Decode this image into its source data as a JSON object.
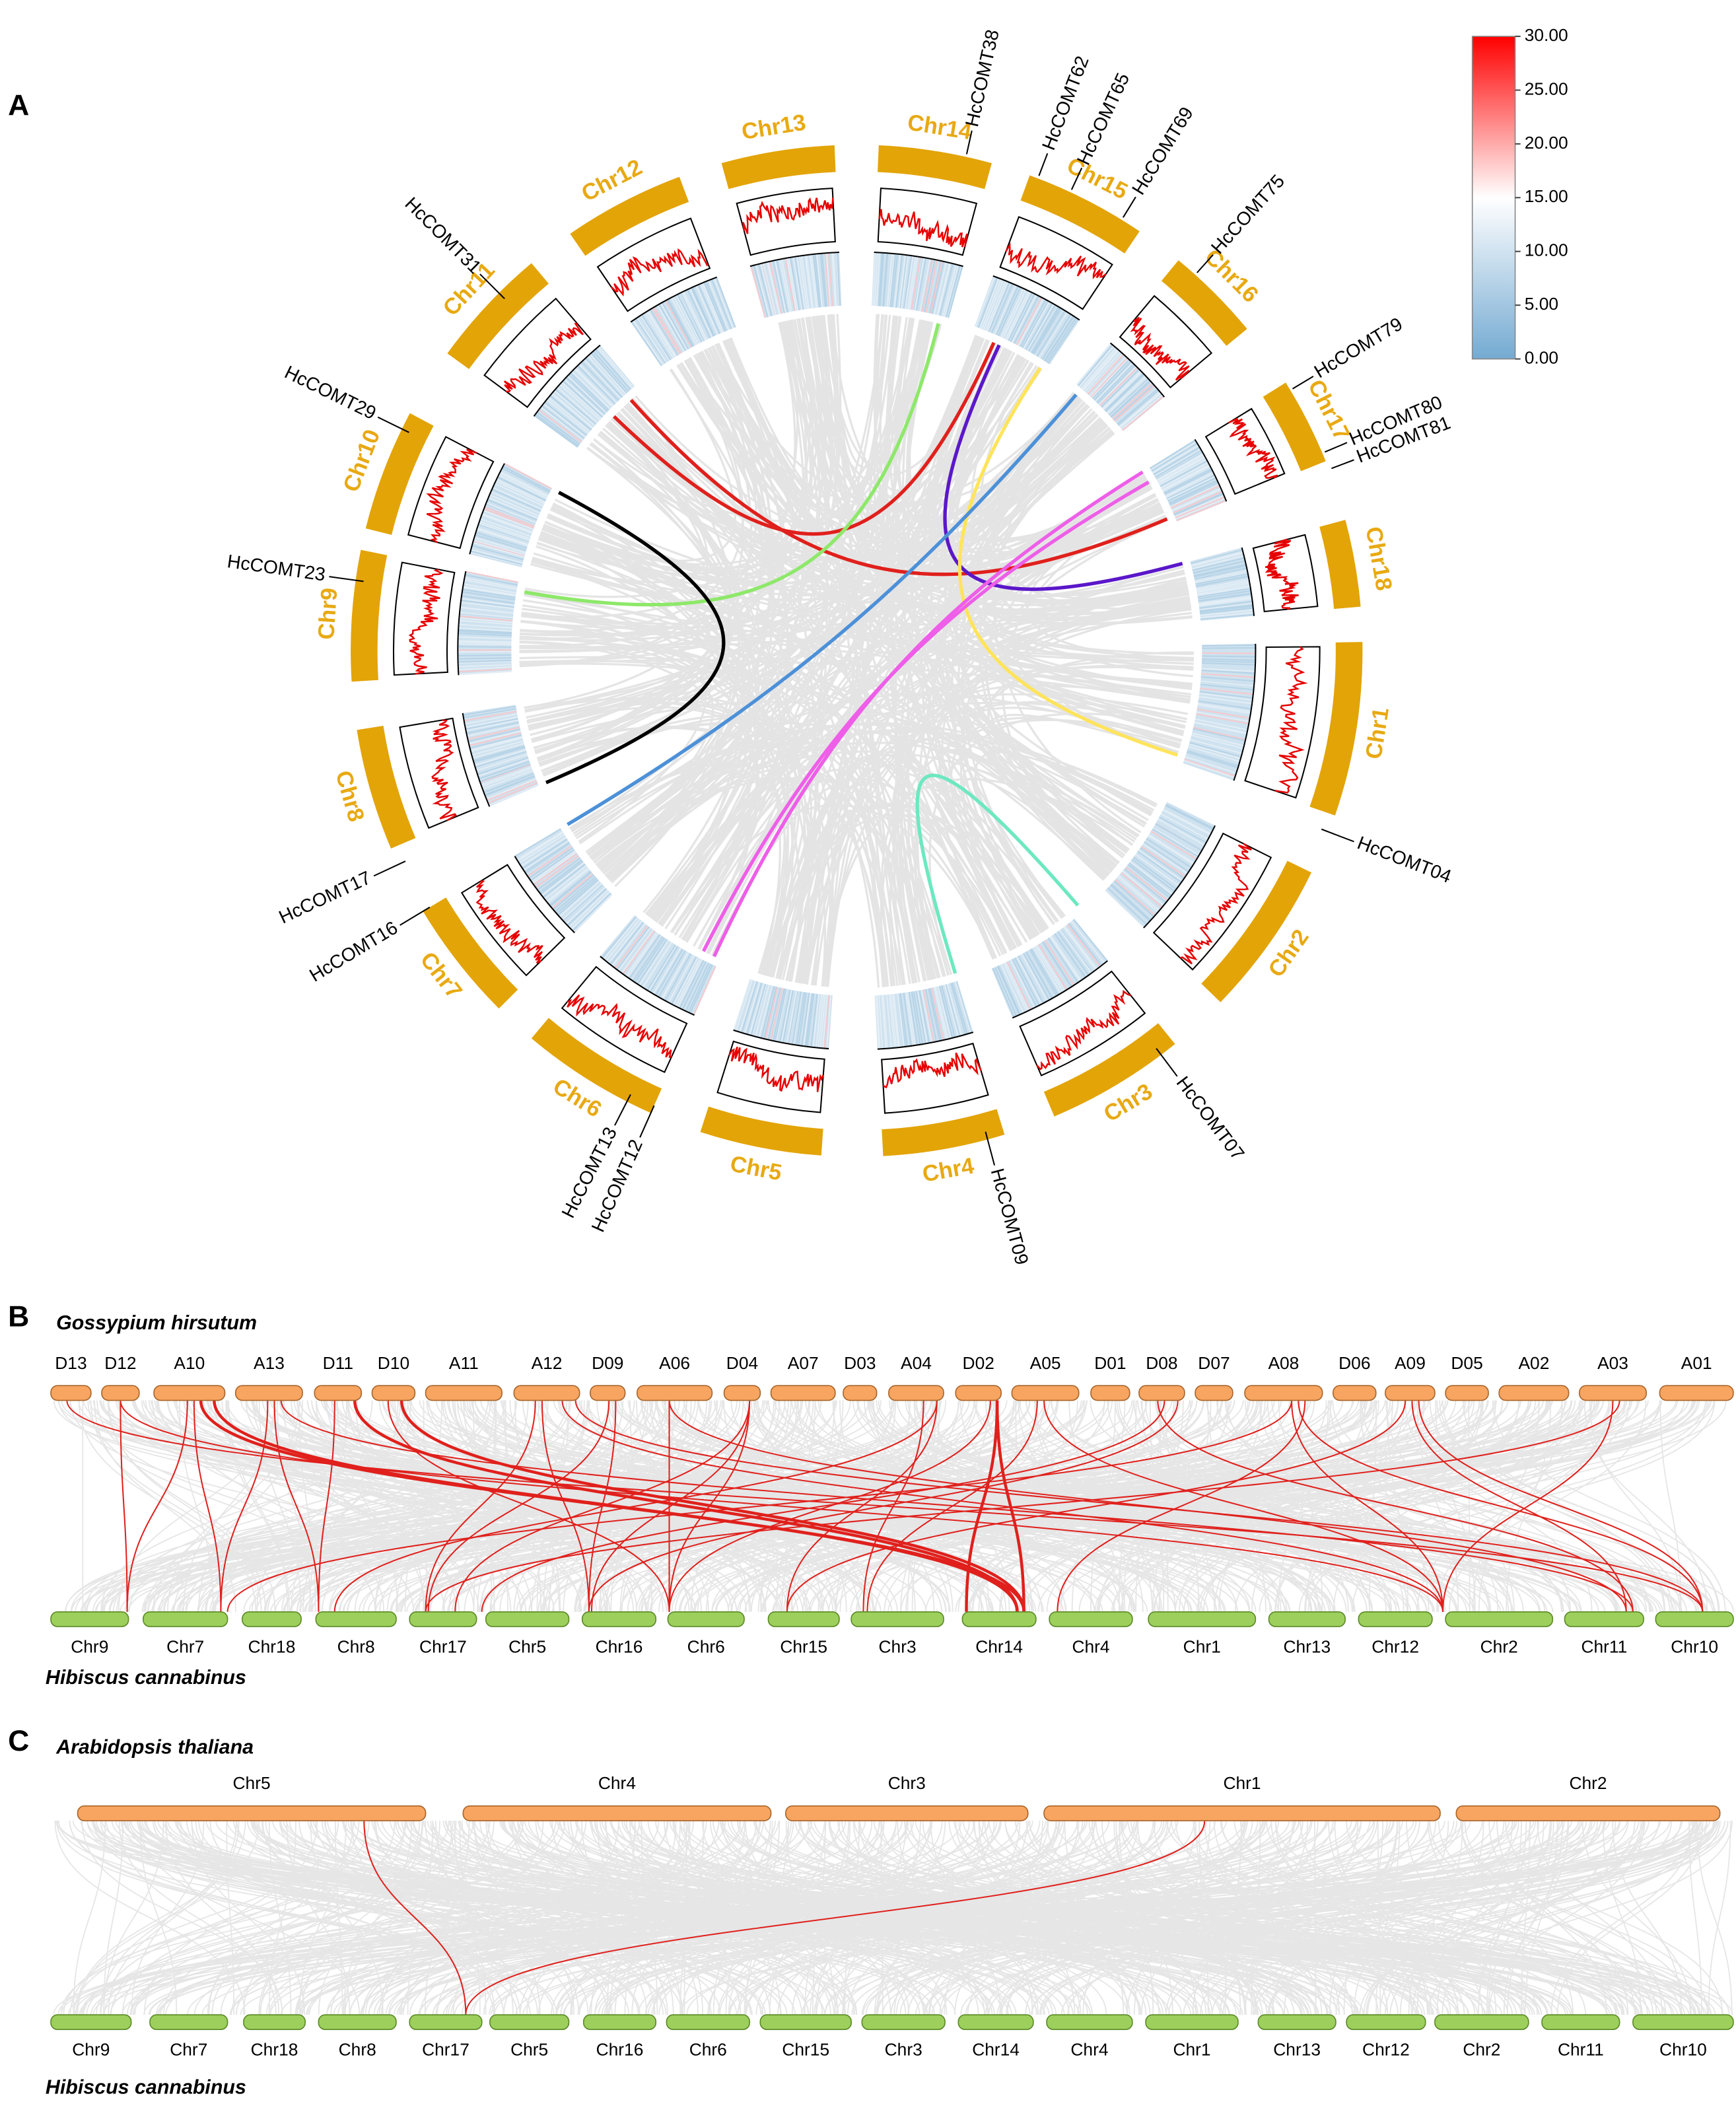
{
  "panel_a": {
    "label": "A",
    "chromosomes": [
      "Chr1",
      "Chr2",
      "Chr3",
      "Chr4",
      "Chr5",
      "Chr6",
      "Chr7",
      "Chr8",
      "Chr9",
      "Chr10",
      "Chr11",
      "Chr12",
      "Chr13",
      "Chr14",
      "Chr15",
      "Chr16",
      "Chr17",
      "Chr18"
    ],
    "genes": [
      "HcCOMT38",
      "HcCOMT62",
      "HcCOMT65",
      "HcCOMT69",
      "HcCOMT75",
      "HcCOMT79",
      "HcCOMT80",
      "HcCOMT81",
      "HcCOMT04",
      "HcCOMT07",
      "HcCOMT09",
      "HcCOMT12",
      "HcCOMT13",
      "HcCOMT16",
      "HcCOMT17",
      "HcCOMT23",
      "HcCOMT29",
      "HcCOMT31"
    ],
    "colorbar_ticks": [
      "30.00",
      "25.00",
      "20.00",
      "15.00",
      "10.00",
      "5.00",
      "0.00"
    ]
  },
  "panel_b": {
    "label": "B",
    "top_species": "Gossypium hirsutum",
    "top_chromosomes": [
      "D13",
      "D12",
      "A10",
      "A13",
      "D11",
      "D10",
      "A11",
      "A12",
      "D09",
      "A06",
      "D04",
      "A07",
      "D03",
      "A04",
      "D02",
      "A05",
      "D01",
      "D08",
      "D07",
      "A08",
      "D06",
      "A09",
      "D05",
      "A02",
      "A03",
      "A01"
    ],
    "bottom_species": "Hibiscus cannabinus",
    "bottom_chromosomes": [
      "Chr9",
      "Chr7",
      "Chr18",
      "Chr8",
      "Chr17",
      "Chr5",
      "Chr16",
      "Chr6",
      "Chr15",
      "Chr3",
      "Chr14",
      "Chr4",
      "Chr1",
      "Chr13",
      "Chr12",
      "Chr2",
      "Chr11",
      "Chr10"
    ]
  },
  "panel_c": {
    "label": "C",
    "top_species": "Arabidopsis thaliana",
    "top_chromosomes": [
      "Chr5",
      "Chr4",
      "Chr3",
      "Chr1",
      "Chr2"
    ],
    "bottom_species": "Hibiscus cannabinus",
    "bottom_chromosomes": [
      "Chr9",
      "Chr7",
      "Chr18",
      "Chr8",
      "Chr17",
      "Chr5",
      "Chr16",
      "Chr6",
      "Chr15",
      "Chr3",
      "Chr14",
      "Chr4",
      "Chr1",
      "Chr13",
      "Chr12",
      "Chr2",
      "Chr11",
      "Chr10"
    ]
  }
}
